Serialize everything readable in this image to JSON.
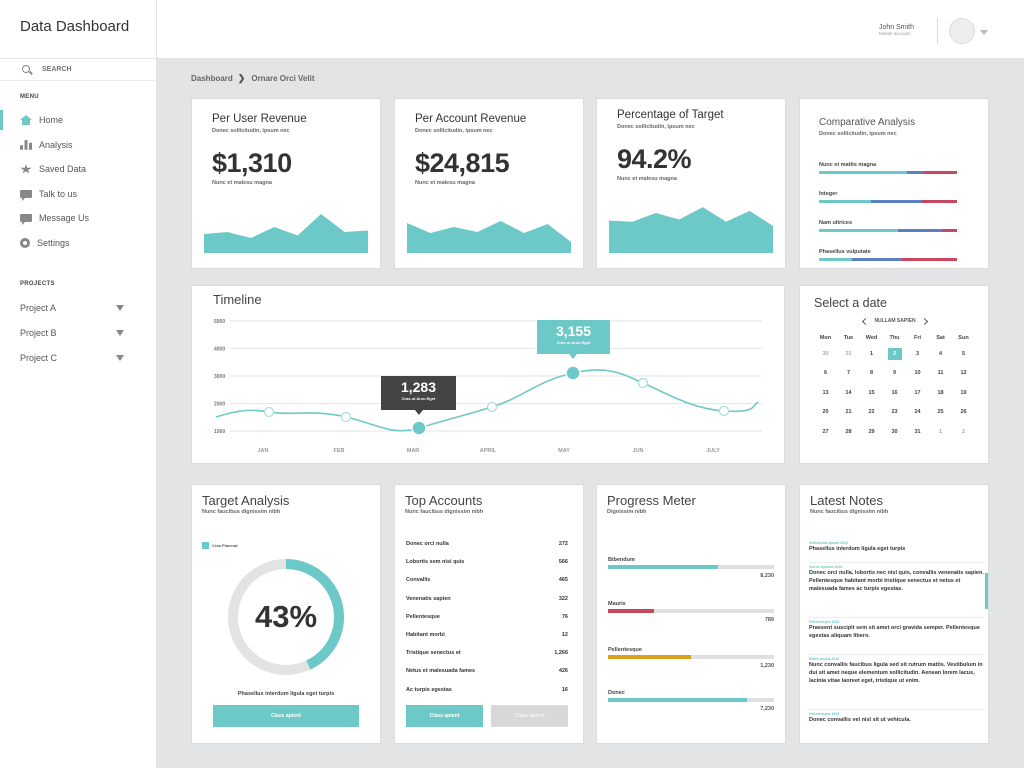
{
  "sidebar": {
    "brand": "Data Dashboard",
    "search_placeholder": "SEARCH",
    "menu_heading": "MENU",
    "menu": [
      {
        "label": "Home",
        "icon": "home-icon",
        "active": true
      },
      {
        "label": "Analysis",
        "icon": "bar-chart-icon"
      },
      {
        "label": "Saved Data",
        "icon": "star-icon"
      },
      {
        "label": "Talk to us",
        "icon": "chat-bubble-icon"
      },
      {
        "label": "Message Us",
        "icon": "chat-bubble-icon"
      },
      {
        "label": "Settings",
        "icon": "gear-icon"
      }
    ],
    "projects_heading": "PROJECTS",
    "projects": [
      {
        "label": "Project A"
      },
      {
        "label": "Project B"
      },
      {
        "label": "Project C"
      }
    ]
  },
  "header": {
    "user_name": "John Smith",
    "user_role": "Master account"
  },
  "breadcrumb": {
    "root": "Dashboard",
    "current": "Ornare Orci Velit"
  },
  "colors": {
    "accent": "#6cc9c8",
    "blue": "#5b7fc4",
    "red": "#c9475c",
    "orange": "#d9a21b"
  },
  "kpis": [
    {
      "title": "Per User Revenue",
      "subtitle": "Donec sollicitudin, ipsum nec",
      "value": "$1,310",
      "note": "Nunc et malesu magna",
      "spark": [
        0.38,
        0.42,
        0.3,
        0.52,
        0.35,
        0.78,
        0.42,
        0.45
      ]
    },
    {
      "title": "Per Account Revenue",
      "subtitle": "Donec sollicitudin, ipsum nec",
      "value": "$24,815",
      "note": "Nunc et malesu magna",
      "spark": [
        0.6,
        0.4,
        0.52,
        0.42,
        0.64,
        0.4,
        0.58,
        0.22
      ]
    },
    {
      "title": "Percentage of Target",
      "subtitle": "Donec sollicitudin, ipsum nec",
      "value": "94.2%",
      "note": "Nunc et malesu magna",
      "spark": [
        0.6,
        0.58,
        0.74,
        0.62,
        0.85,
        0.58,
        0.78,
        0.5
      ]
    }
  ],
  "comparative": {
    "title": "Comparative Analysis",
    "subtitle": "Donec sollicitudin, ipsum nec",
    "rows": [
      {
        "label": "Nunc et mattis magna",
        "segments": [
          0.64,
          0.12,
          0.24
        ]
      },
      {
        "label": "Integer",
        "segments": [
          0.38,
          0.37,
          0.25
        ]
      },
      {
        "label": "Nam ultrices",
        "segments": [
          0.57,
          0.32,
          0.11
        ]
      },
      {
        "label": "Phasellus vulputate",
        "segments": [
          0.24,
          0.36,
          0.4
        ]
      }
    ]
  },
  "timeline": {
    "title": "Timeline",
    "y_ticks": [
      "5000",
      "4000",
      "3000",
      "2000",
      "1000"
    ],
    "x_labels": [
      "JAN",
      "FEB",
      "MAR",
      "APRIL",
      "MAY",
      "JUN",
      "JULY"
    ],
    "callouts": [
      {
        "value": "1,283",
        "sub": "Cras ut Arcu Eget"
      },
      {
        "value": "3,155",
        "sub": "Cras ut Arcu Eget"
      }
    ]
  },
  "calendar": {
    "title": "Select a date",
    "month": "NULLAM SAPIEN",
    "days": [
      "Mon",
      "Tue",
      "Wed",
      "Thu",
      "Fri",
      "Sat",
      "Sun"
    ],
    "weeks": [
      [
        "30",
        "31",
        "1",
        "2",
        "3",
        "4",
        "5"
      ],
      [
        "6",
        "7",
        "8",
        "9",
        "10",
        "11",
        "12"
      ],
      [
        "13",
        "14",
        "15",
        "16",
        "17",
        "18",
        "19"
      ],
      [
        "20",
        "21",
        "22",
        "23",
        "24",
        "25",
        "26"
      ],
      [
        "27",
        "28",
        "29",
        "30",
        "31",
        "1",
        "2"
      ]
    ]
  },
  "target_analysis": {
    "title": "Target Analysis",
    "subtitle": "Nunc faucibus dignissim nibh",
    "legend": "Cras Placerat",
    "percent": "43%",
    "fraction": 0.43,
    "caption": "Phasellus interdum ligula eget turpis",
    "button": "Class aptent"
  },
  "top_accounts": {
    "title": "Top Accounts",
    "subtitle": "Nunc faucibus dignissim nibh",
    "rows": [
      {
        "name": "Donec orci nulla",
        "value": "272"
      },
      {
        "name": "Lobortis sem nisi quis",
        "value": "566"
      },
      {
        "name": "Convallis",
        "value": "465"
      },
      {
        "name": "Venenatis sapien",
        "value": "322"
      },
      {
        "name": "Pellentesque",
        "value": "76"
      },
      {
        "name": "Habitant morbi",
        "value": "12"
      },
      {
        "name": "Tristique senectus et",
        "value": "1,266"
      },
      {
        "name": "Netus et malesuada fames",
        "value": "426"
      },
      {
        "name": "Ac turpis egestas",
        "value": "16"
      }
    ],
    "button_primary": "Class aptent",
    "button_secondary": "Class aptent"
  },
  "progress_meter": {
    "title": "Progress Meter",
    "subtitle": "Dignissim nibh",
    "items": [
      {
        "label": "Bibendum",
        "value": "8,230",
        "fraction": 0.66,
        "color": "#6cc9c8"
      },
      {
        "label": "Mauris",
        "value": "789",
        "fraction": 0.28,
        "color": "#c9475c"
      },
      {
        "label": "Pellentesque",
        "value": "1,230",
        "fraction": 0.5,
        "color": "#d9a21b"
      },
      {
        "label": "Donec",
        "value": "7,230",
        "fraction": 0.84,
        "color": "#6cc9c8"
      }
    ]
  },
  "latest_notes": {
    "title": "Latest Notes",
    "subtitle": "Nunc faucibus dignissim nibh",
    "items": [
      {
        "date": "Sollicitudin ipsum 2016",
        "text": "Phasellus interdum ligula eget turpis"
      },
      {
        "date": "Sed id egestas 2016",
        "text": "Donec orci nulla, lobortis nec nisl quis, convallis venenatis sapien. Pellentesque habitant morbi tristique senectus et netus et malesuada fames ac turpis egestas."
      },
      {
        "date": "Pellentesque 2016",
        "text": "Praesent suscipit sem sit amet orci gravida semper. Pellentesque egestas aliquam libero."
      },
      {
        "date": "Etiam iaculis 2016",
        "text": "Nunc convallis faucibus ligula sed sit rutrum mattis. Vestibulum in dui sit amet neque elementum sollicitudin. Aenean lorem lacus, lacinia vitae laoreet eget, tristique ut enim."
      },
      {
        "date": "Pellentesque 2016",
        "text": "Donec convallis vel nisl sit ut vehicula."
      }
    ]
  }
}
